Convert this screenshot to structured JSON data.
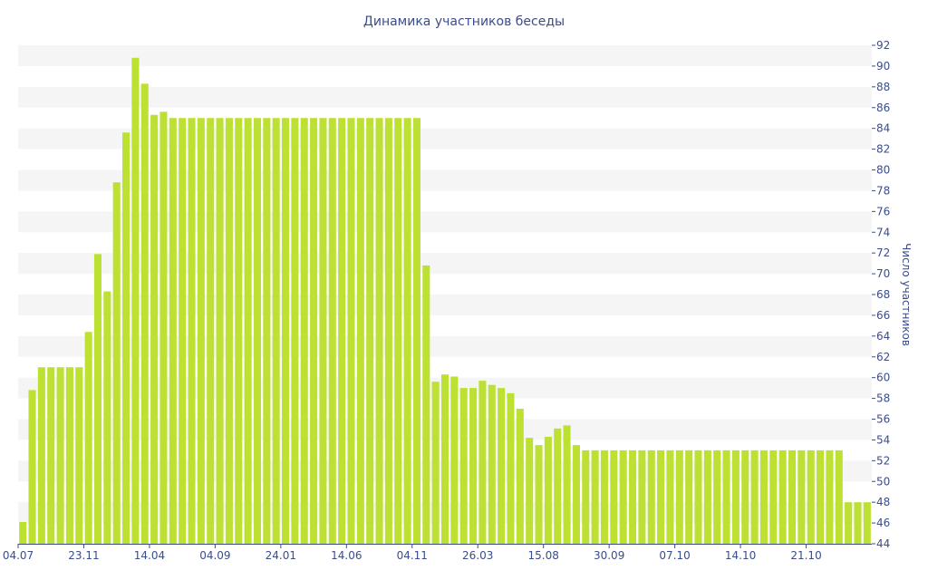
{
  "chart_data": {
    "type": "bar",
    "title": "Динамика участников беседы",
    "xlabel": "",
    "ylabel": "Число участников",
    "ylim": [
      44,
      92
    ],
    "y_ticks": [
      44,
      46,
      48,
      50,
      52,
      54,
      56,
      58,
      60,
      62,
      64,
      66,
      68,
      70,
      72,
      74,
      76,
      78,
      80,
      82,
      84,
      86,
      88,
      90,
      92
    ],
    "x_tick_labels": [
      "04.07",
      "23.11",
      "14.04",
      "04.09",
      "24.01",
      "14.06",
      "04.11",
      "26.03",
      "15.08",
      "30.09",
      "07.10",
      "14.10",
      "21.10"
    ],
    "x_tick_positions": [
      0,
      7,
      14,
      21,
      28,
      35,
      42,
      49,
      56,
      63,
      70,
      77,
      84
    ],
    "grid": "horizontal bands",
    "legend": "none",
    "colors": {
      "bar": "#bde133",
      "band": "#f5f5f5",
      "text": "#3b4d8a",
      "axis": "#3b4d8a"
    },
    "values": [
      46.1,
      58.8,
      61,
      61,
      61,
      61,
      61,
      64.4,
      71.9,
      68.3,
      78.8,
      83.6,
      90.8,
      88.3,
      85.3,
      85.6,
      85,
      85,
      85,
      85,
      85,
      85,
      85,
      85,
      85,
      85,
      85,
      85,
      85,
      85,
      85,
      85,
      85,
      85,
      85,
      85,
      85,
      85,
      85,
      85,
      85,
      85,
      85,
      70.8,
      59.6,
      60.3,
      60.1,
      59,
      59,
      59.7,
      59.3,
      59,
      58.5,
      57,
      54.2,
      53.5,
      54.3,
      55.1,
      55.4,
      53.5,
      53,
      53,
      53,
      53,
      53,
      53,
      53,
      53,
      53,
      53,
      53,
      53,
      53,
      53,
      53,
      53,
      53,
      53,
      53,
      53,
      53,
      53,
      53,
      53,
      53,
      53,
      53,
      53,
      48,
      48,
      48
    ]
  }
}
